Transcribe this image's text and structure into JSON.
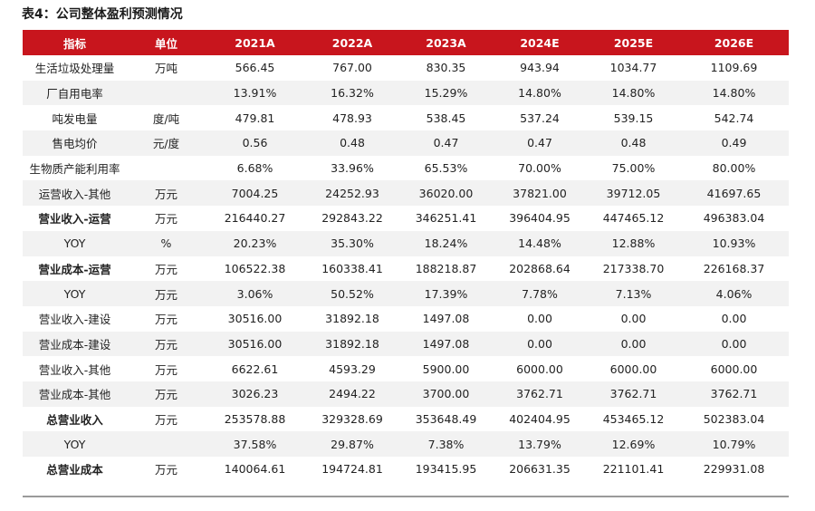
{
  "title": "表4：公司整体盈利预测情况",
  "columns": [
    "指标",
    "单位",
    "2021A",
    "2022A",
    "2023A",
    "2024E",
    "2025E",
    "2026E"
  ],
  "rows": [
    {
      "label": "生活垃圾处理量",
      "unit": "万吨",
      "values": [
        "566.45",
        "767.00",
        "830.35",
        "943.94",
        "1034.77",
        "1109.69"
      ],
      "bold": false,
      "shaded": false
    },
    {
      "label": "厂自用电率",
      "unit": "",
      "values": [
        "13.91%",
        "16.32%",
        "15.29%",
        "14.80%",
        "14.80%",
        "14.80%"
      ],
      "bold": false,
      "shaded": true
    },
    {
      "label": "吨发电量",
      "unit": "度/吨",
      "values": [
        "479.81",
        "478.93",
        "538.45",
        "537.24",
        "539.15",
        "542.74"
      ],
      "bold": false,
      "shaded": false
    },
    {
      "label": "售电均价",
      "unit": "元/度",
      "values": [
        "0.56",
        "0.48",
        "0.47",
        "0.47",
        "0.48",
        "0.49"
      ],
      "bold": false,
      "shaded": true
    },
    {
      "label": "生物质产能利用率",
      "unit": "",
      "values": [
        "6.68%",
        "33.96%",
        "65.53%",
        "70.00%",
        "75.00%",
        "80.00%"
      ],
      "bold": false,
      "shaded": false
    },
    {
      "label": "运营收入-其他",
      "unit": "万元",
      "values": [
        "7004.25",
        "24252.93",
        "36020.00",
        "37821.00",
        "39712.05",
        "41697.65"
      ],
      "bold": false,
      "shaded": true
    },
    {
      "label": "营业收入-运营",
      "unit": "万元",
      "values": [
        "216440.27",
        "292843.22",
        "346251.41",
        "396404.95",
        "447465.12",
        "496383.04"
      ],
      "bold": true,
      "shaded": false
    },
    {
      "label": "YOY",
      "unit": "%",
      "values": [
        "20.23%",
        "35.30%",
        "18.24%",
        "14.48%",
        "12.88%",
        "10.93%"
      ],
      "bold": false,
      "shaded": true
    },
    {
      "label": "营业成本-运营",
      "unit": "万元",
      "values": [
        "106522.38",
        "160338.41",
        "188218.87",
        "202868.64",
        "217338.70",
        "226168.37"
      ],
      "bold": true,
      "shaded": false
    },
    {
      "label": "YOY",
      "unit": "万元",
      "values": [
        "3.06%",
        "50.52%",
        "17.39%",
        "7.78%",
        "7.13%",
        "4.06%"
      ],
      "bold": false,
      "shaded": true
    },
    {
      "label": "营业收入-建设",
      "unit": "万元",
      "values": [
        "30516.00",
        "31892.18",
        "1497.08",
        "0.00",
        "0.00",
        "0.00"
      ],
      "bold": false,
      "shaded": false
    },
    {
      "label": "营业成本-建设",
      "unit": "万元",
      "values": [
        "30516.00",
        "31892.18",
        "1497.08",
        "0.00",
        "0.00",
        "0.00"
      ],
      "bold": false,
      "shaded": true
    },
    {
      "label": "营业收入-其他",
      "unit": "万元",
      "values": [
        "6622.61",
        "4593.29",
        "5900.00",
        "6000.00",
        "6000.00",
        "6000.00"
      ],
      "bold": false,
      "shaded": false
    },
    {
      "label": "营业成本-其他",
      "unit": "万元",
      "values": [
        "3026.23",
        "2494.22",
        "3700.00",
        "3762.71",
        "3762.71",
        "3762.71"
      ],
      "bold": false,
      "shaded": true
    },
    {
      "label": "总营业收入",
      "unit": "万元",
      "values": [
        "253578.88",
        "329328.69",
        "353648.49",
        "402404.95",
        "453465.12",
        "502383.04"
      ],
      "bold": true,
      "shaded": false
    },
    {
      "label": "YOY",
      "unit": "",
      "values": [
        "37.58%",
        "29.87%",
        "7.38%",
        "13.79%",
        "12.69%",
        "10.79%"
      ],
      "bold": false,
      "shaded": true
    },
    {
      "label": "总营业成本",
      "unit": "万元",
      "values": [
        "140064.61",
        "194724.81",
        "193415.95",
        "206631.35",
        "221101.41",
        "229931.08"
      ],
      "bold": true,
      "shaded": false
    }
  ],
  "colors": {
    "header_bg": "#c8151d",
    "header_text": "#ffffff",
    "stripe": "#f2f2f2"
  }
}
